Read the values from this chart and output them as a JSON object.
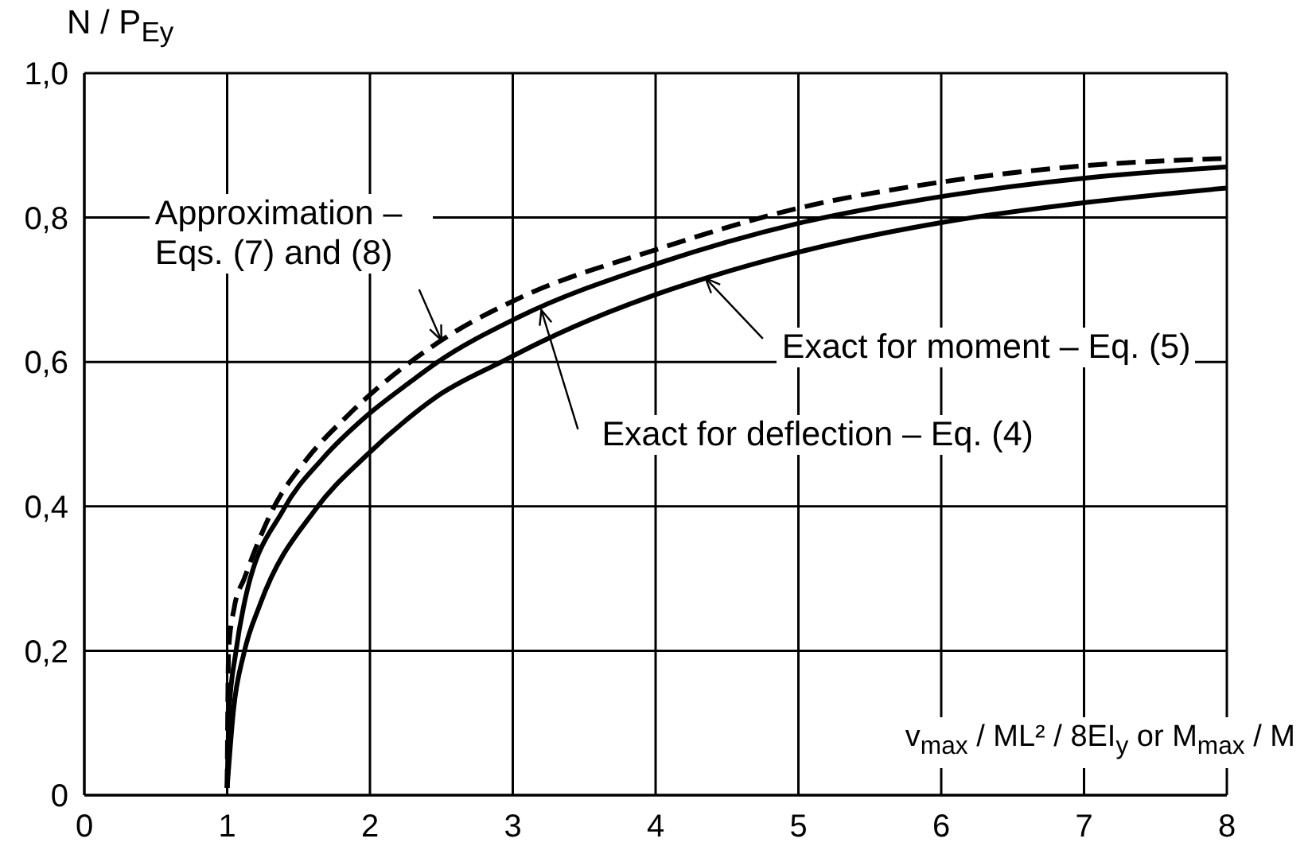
{
  "chart_data": {
    "type": "line",
    "xlabel": "v$_{max}$ / ML² / 8EI$_{y}$ or M$_{max}$ / M",
    "ylabel": "N / P$_{Ey}$",
    "xlim": [
      0,
      8
    ],
    "xticks": [
      0,
      1,
      2,
      3,
      4,
      5,
      6,
      7,
      8
    ],
    "ylim": [
      0,
      1
    ],
    "yticks": [
      0,
      {
        "value": 0.2,
        "label": "0,2"
      },
      {
        "value": 0.4,
        "label": "0,4"
      },
      {
        "value": 0.6,
        "label": "0,6"
      },
      {
        "value": 0.8,
        "label": "0,8"
      },
      {
        "value": 1,
        "label": "1,0"
      }
    ],
    "grid": true,
    "series": [
      {
        "color": "#000000",
        "line_style": "dashed",
        "x": [
          1,
          1.01,
          1.05,
          1.12,
          1.32,
          1.56,
          1.84,
          2.5,
          3.03,
          4.01,
          5,
          6.03,
          7.02,
          8
        ],
        "values": [
          0.01,
          0.2,
          0.26,
          0.3,
          0.396,
          0.466,
          0.525,
          0.63,
          0.687,
          0.756,
          0.813,
          0.85,
          0.872,
          0.882
        ]
      },
      {
        "color": "#000000",
        "line_style": "solid",
        "x": [
          1,
          1.014,
          1.06,
          1.118,
          1.396,
          1.668,
          1.975,
          2.287,
          2.46,
          3.03,
          4.01,
          5,
          6.03,
          7.02,
          8
        ],
        "values": [
          0.01,
          0.117,
          0.197,
          0.264,
          0.396,
          0.466,
          0.525,
          0.573,
          0.598,
          0.661,
          0.736,
          0.792,
          0.83,
          0.855,
          0.87
        ]
      },
      {
        "color": "#000000",
        "line_style": "solid",
        "x": [
          1,
          1.044,
          1.118,
          1.23,
          1.619,
          1.972,
          2.287,
          2.46,
          2.94,
          3.2,
          4.01,
          4.35,
          5,
          6.03,
          7.02,
          8
        ],
        "values": [
          0.01,
          0.117,
          0.197,
          0.264,
          0.396,
          0.47,
          0.525,
          0.551,
          0.602,
          0.628,
          0.694,
          0.716,
          0.752,
          0.794,
          0.821,
          0.841
        ]
      }
    ],
    "annotations": [
      {
        "text": "Approximation – Eqs. (7) and (8)",
        "x": 2.5,
        "y": 0.63
      },
      {
        "text": "Exact for deflection – Eq. (4)",
        "x": 3.2,
        "y": 0.672
      },
      {
        "text": "Exact for moment – Eq. (5)",
        "x": 4.35,
        "y": 0.716
      }
    ]
  }
}
